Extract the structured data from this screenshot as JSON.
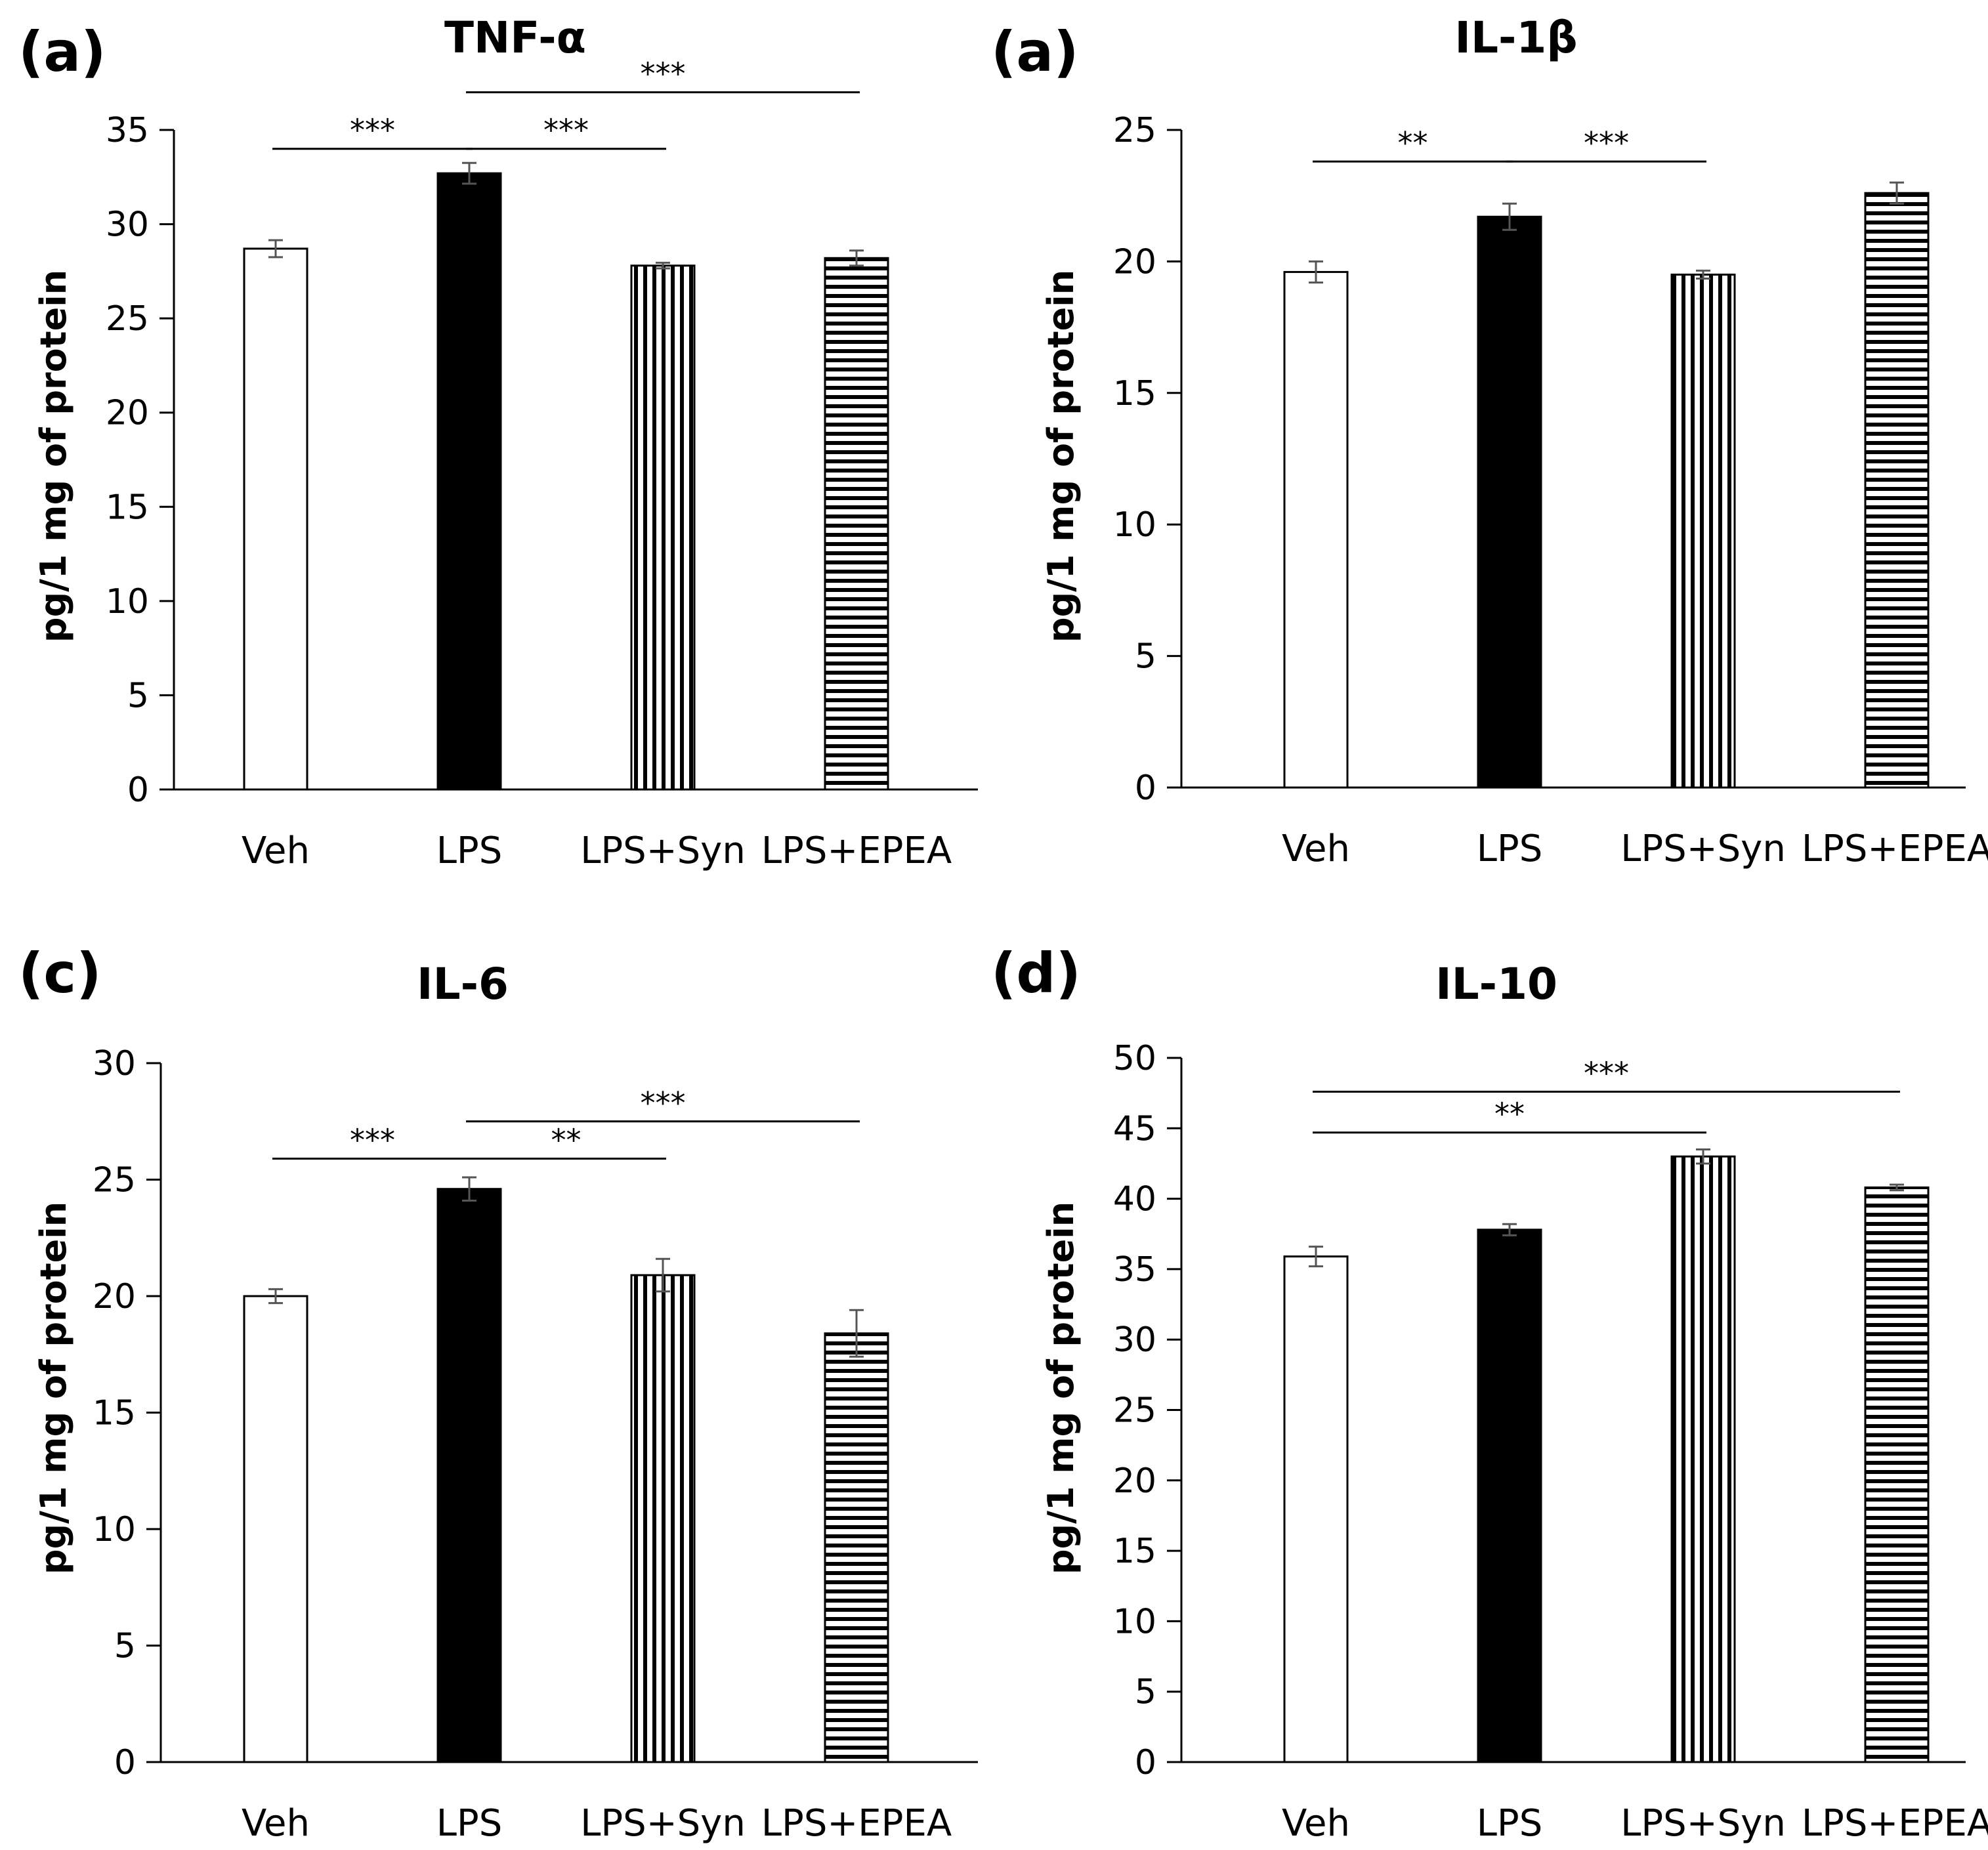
{
  "chart_data": [
    {
      "type": "bar",
      "panel_label": "(a)",
      "title": "TNF-α",
      "xlabel": "",
      "ylabel": "pg/1 mg of protein",
      "ylim": [
        0,
        35
      ],
      "yticks": [
        0,
        5,
        10,
        15,
        20,
        25,
        30,
        35
      ],
      "grid": false,
      "categories": [
        "Veh",
        "LPS",
        "LPS+Syn",
        "LPS+EPEA"
      ],
      "values": [
        28.7,
        32.7,
        27.8,
        28.2
      ],
      "errors": [
        0.45,
        0.55,
        0.15,
        0.4
      ],
      "fills": [
        "white",
        "black",
        "vertical-stripes",
        "horizontal-stripes"
      ],
      "significance": [
        {
          "from": 0,
          "to": 1,
          "label": "***",
          "level": 34.0
        },
        {
          "from": 1,
          "to": 2,
          "label": "***",
          "level": 34.0
        },
        {
          "from": 1,
          "to": 3,
          "label": "***",
          "level": 37.0
        }
      ]
    },
    {
      "type": "bar",
      "panel_label": "(a)",
      "title": "IL-1β",
      "xlabel": "",
      "ylabel": "pg/1 mg of protein",
      "ylim": [
        0,
        25
      ],
      "yticks": [
        0,
        5,
        10,
        15,
        20,
        25
      ],
      "grid": false,
      "categories": [
        "Veh",
        "LPS",
        "LPS+Syn",
        "LPS+EPEA"
      ],
      "values": [
        19.6,
        21.7,
        19.5,
        22.6
      ],
      "errors": [
        0.4,
        0.5,
        0.15,
        0.4
      ],
      "fills": [
        "white",
        "black",
        "vertical-stripes",
        "horizontal-stripes"
      ],
      "significance": [
        {
          "from": 0,
          "to": 1,
          "label": "**",
          "level": 23.8
        },
        {
          "from": 1,
          "to": 2,
          "label": "***",
          "level": 23.8
        }
      ]
    },
    {
      "type": "bar",
      "panel_label": "(c)",
      "title": "IL-6",
      "xlabel": "",
      "ylabel": "pg/1 mg of protein",
      "ylim": [
        0,
        30
      ],
      "yticks": [
        0,
        5,
        10,
        15,
        20,
        25,
        30
      ],
      "grid": false,
      "categories": [
        "Veh",
        "LPS",
        "LPS+Syn",
        "LPS+EPEA"
      ],
      "values": [
        20.0,
        24.6,
        20.9,
        18.4
      ],
      "errors": [
        0.3,
        0.5,
        0.7,
        1.0
      ],
      "fills": [
        "white",
        "black",
        "vertical-stripes",
        "horizontal-stripes"
      ],
      "significance": [
        {
          "from": 0,
          "to": 1,
          "label": "***",
          "level": 25.9
        },
        {
          "from": 1,
          "to": 2,
          "label": "**",
          "level": 25.9
        },
        {
          "from": 1,
          "to": 3,
          "label": "***",
          "level": 27.5
        }
      ]
    },
    {
      "type": "bar",
      "panel_label": "(d)",
      "title": "IL-10",
      "xlabel": "",
      "ylabel": "pg/1 mg of protein",
      "ylim": [
        0,
        50
      ],
      "yticks": [
        0,
        5,
        10,
        15,
        20,
        25,
        30,
        35,
        40,
        45,
        50
      ],
      "grid": false,
      "categories": [
        "Veh",
        "LPS",
        "LPS+Syn",
        "LPS+EPEA"
      ],
      "values": [
        35.9,
        37.8,
        43.0,
        40.8
      ],
      "errors": [
        0.7,
        0.4,
        0.5,
        0.2
      ],
      "fills": [
        "white",
        "black",
        "vertical-stripes",
        "horizontal-stripes"
      ],
      "significance": [
        {
          "from": 0,
          "to": 2,
          "label": "**",
          "level": 44.7
        },
        {
          "from": 0,
          "to": 3,
          "label": "***",
          "level": 47.6
        }
      ]
    }
  ]
}
